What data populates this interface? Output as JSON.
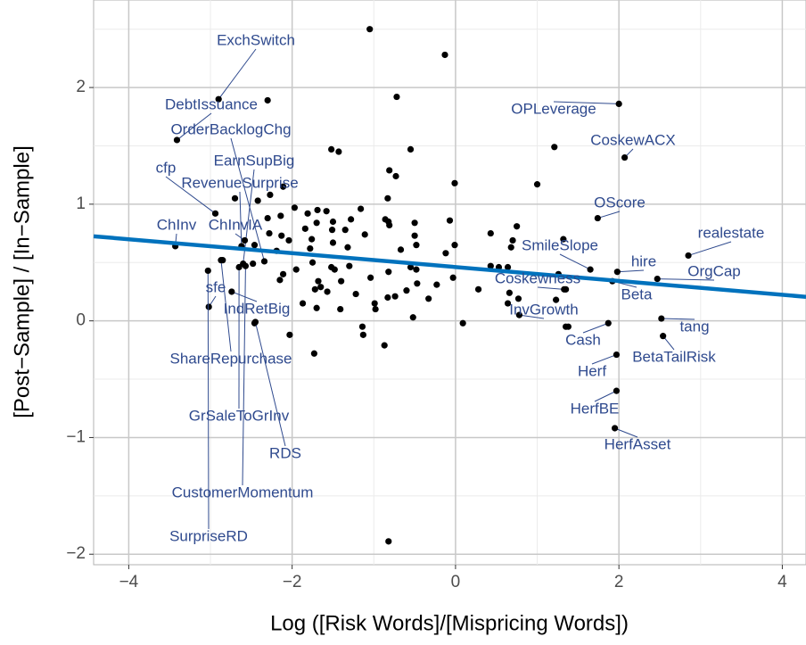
{
  "chart_data": {
    "type": "scatter",
    "x_label": "Log ([Risk Words]/[Mispricing Words])",
    "y_label": "[Post−Sample] / [In−Sample]",
    "xlim": [
      -4.43,
      4.29
    ],
    "ylim": [
      -2.09,
      2.75
    ],
    "xticks": [
      {
        "value": -4,
        "label": "−4"
      },
      {
        "value": -2,
        "label": "−2"
      },
      0,
      2,
      4
    ],
    "yticks": [
      {
        "value": -2,
        "label": "−2"
      },
      {
        "value": -1,
        "label": "−1"
      },
      0,
      1,
      2
    ],
    "xticks_minor": [
      -3,
      -1,
      1,
      3
    ],
    "yticks_minor": [
      -1.5,
      -0.5,
      0.5,
      1.5,
      2.5
    ],
    "grid": true,
    "color": "#000000",
    "label_color": "#2f4a8e",
    "x": [
      -1.05,
      -0.13,
      -0.72,
      -2.3,
      -1.52,
      -1.43,
      -0.55,
      1.21,
      -0.81,
      -0.73,
      -0.01,
      1.0,
      -2.11,
      -2.27,
      -0.83,
      -2.42,
      -2.7,
      -1.97,
      -1.69,
      -1.58,
      -1.16,
      -1.81,
      -2.14,
      -2.3,
      -0.86,
      -0.5,
      -0.07,
      -1.7,
      -1.5,
      -1.28,
      -0.82,
      -0.81,
      0.75,
      0.43,
      -1.84,
      -1.51,
      -1.35,
      -2.28,
      -2.13,
      -1.11,
      -0.5,
      -1.5,
      -1.76,
      -2.04,
      -2.46,
      -0.48,
      -0.01,
      0.7,
      1.32,
      0.68,
      -1.78,
      -1.32,
      -0.67,
      -2.19,
      -0.12,
      -1.75,
      -1.52,
      -1.48,
      -1.3,
      -0.55,
      -0.48,
      0.43,
      0.53,
      0.64,
      -2.48,
      -2.85,
      -2.11,
      -1.95,
      -2.15,
      -1.68,
      -1.4,
      -1.04,
      -0.82,
      -0.6,
      -0.47,
      -0.23,
      -0.03,
      0.28,
      1.26,
      1.35,
      0.66,
      0.77,
      -1.72,
      -1.65,
      -1.57,
      -1.22,
      -0.83,
      -0.74,
      -0.33,
      0.64,
      1.23,
      -0.98,
      -0.99,
      -1.87,
      -1.7,
      -1.41,
      -1.14,
      -1.13,
      -0.52,
      0.09,
      -2.03,
      -1.73,
      -0.87,
      1.38,
      1.35,
      -0.82,
      -2.46
    ],
    "values": [
      2.5,
      2.28,
      1.92,
      1.89,
      1.47,
      1.45,
      1.47,
      1.49,
      1.29,
      1.24,
      1.18,
      1.17,
      1.15,
      1.08,
      1.05,
      1.03,
      1.05,
      0.97,
      0.95,
      0.94,
      0.96,
      0.92,
      0.9,
      0.88,
      0.87,
      0.84,
      0.86,
      0.84,
      0.85,
      0.87,
      0.85,
      0.82,
      0.81,
      0.75,
      0.79,
      0.78,
      0.78,
      0.75,
      0.73,
      0.74,
      0.73,
      0.67,
      0.7,
      0.69,
      0.65,
      0.65,
      0.65,
      0.69,
      0.7,
      0.63,
      0.62,
      0.63,
      0.61,
      0.6,
      0.58,
      0.5,
      0.46,
      0.44,
      0.47,
      0.46,
      0.44,
      0.47,
      0.46,
      0.46,
      0.49,
      0.52,
      0.4,
      0.44,
      0.35,
      0.34,
      0.34,
      0.37,
      0.42,
      0.26,
      0.32,
      0.31,
      0.37,
      0.27,
      0.4,
      0.27,
      0.24,
      0.19,
      0.27,
      0.29,
      0.25,
      0.23,
      0.2,
      0.21,
      0.19,
      0.15,
      0.18,
      0.1,
      0.15,
      0.15,
      0.11,
      0.1,
      -0.05,
      -0.12,
      0.03,
      -0.02,
      -0.12,
      -0.28,
      -0.21,
      -0.05,
      -0.05,
      -1.89,
      -0.02
    ],
    "labeled_points": {
      "names": [
        "ExchSwitch",
        "DebtIssuance",
        "OrderBacklogChg",
        "EarnSupBig",
        "cfp",
        "RevenueSurprise",
        "ChInv",
        "ChInvIA",
        "sfe",
        "IndRetBig",
        "ShareRepurchase",
        "GrSaleToGrInv",
        "RDS",
        "CustomerMomentum",
        "SurpriseRD",
        "OPLeverage",
        "CoskewACX",
        "OScore",
        "realestate",
        "SmileSlope",
        "hire",
        "OrgCap",
        "Coskewness",
        "Beta",
        "InvGrowth",
        "Cash",
        "tang",
        "BetaTailRisk",
        "Herf",
        "HerfBE",
        "HerfAsset"
      ],
      "x": [
        -2.9,
        -3.41,
        -2.34,
        -2.6,
        -2.94,
        -2.62,
        -3.43,
        -2.58,
        -3.02,
        -2.74,
        -2.87,
        -2.65,
        -2.45,
        -2.57,
        -3.03,
        2.0,
        2.07,
        1.74,
        2.85,
        1.65,
        1.98,
        2.47,
        1.33,
        1.92,
        0.78,
        1.87,
        2.52,
        2.54,
        1.97,
        1.97,
        1.95
      ],
      "values": [
        1.9,
        1.55,
        0.51,
        0.49,
        0.92,
        0.64,
        0.64,
        0.69,
        0.12,
        0.25,
        0.52,
        0.46,
        -0.01,
        0.47,
        0.43,
        1.86,
        1.4,
        0.88,
        0.56,
        0.44,
        0.42,
        0.36,
        0.27,
        0.34,
        0.05,
        -0.02,
        0.02,
        -0.13,
        -0.29,
        -0.6,
        -0.92
      ]
    },
    "fit": {
      "color": "#0072bd",
      "x": [
        -4.43,
        4.29
      ],
      "values": [
        0.725,
        0.206
      ]
    }
  }
}
